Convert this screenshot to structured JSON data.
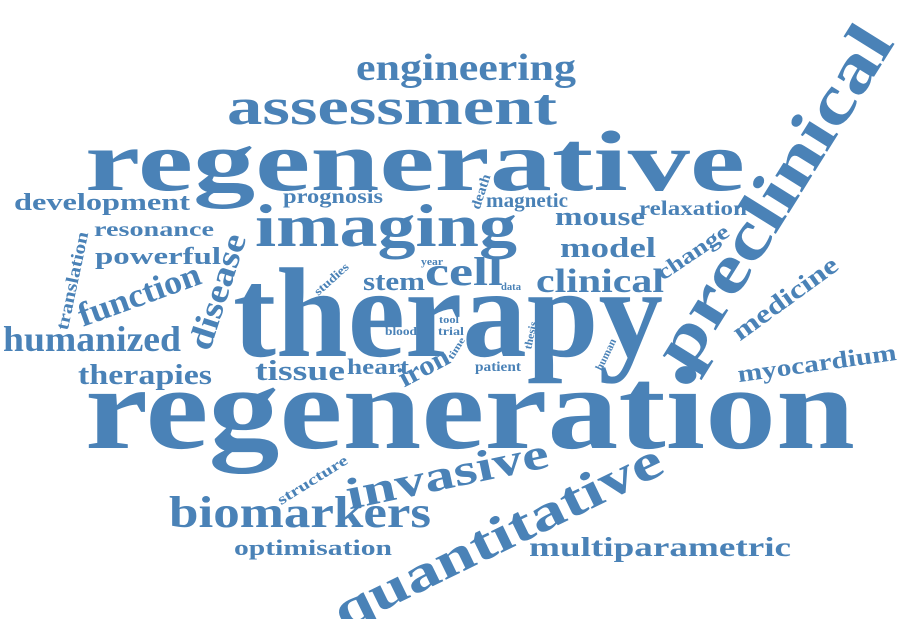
{
  "cloud": {
    "color": "#4a82b7",
    "words": {
      "regeneration": "regeneration",
      "therapy": "therapy",
      "regenerative": "regenerative",
      "imaging": "imaging",
      "assessment": "assessment",
      "preclinical": "preclinical",
      "quantitative": "quantitative",
      "engineering": "engineering",
      "biomarkers": "biomarkers",
      "invasive": "invasive",
      "multiparametric": "multiparametric",
      "optimisation": "optimisation",
      "humanized": "humanized",
      "function": "function",
      "disease": "disease",
      "therapies": "therapies",
      "tissue": "tissue",
      "heart": "heart",
      "iron": "iron",
      "cell": "cell",
      "stem": "stem",
      "clinical": "clinical",
      "model": "model",
      "mouse": "mouse",
      "relaxation": "relaxation",
      "change": "change",
      "medicine": "medicine",
      "myocardium": "myocardium",
      "development": "development",
      "resonance": "resonance",
      "powerful": "powerful",
      "translation": "translation",
      "prognosis": "prognosis",
      "magnetic": "magnetic",
      "death": "death",
      "year": "year",
      "studies": "studies",
      "data": "data",
      "blood": "blood",
      "tool": "tool",
      "trial": "trial",
      "time": "time",
      "patient": "patient",
      "thesis": "thesis",
      "human": "human",
      "structure": "structure"
    }
  }
}
